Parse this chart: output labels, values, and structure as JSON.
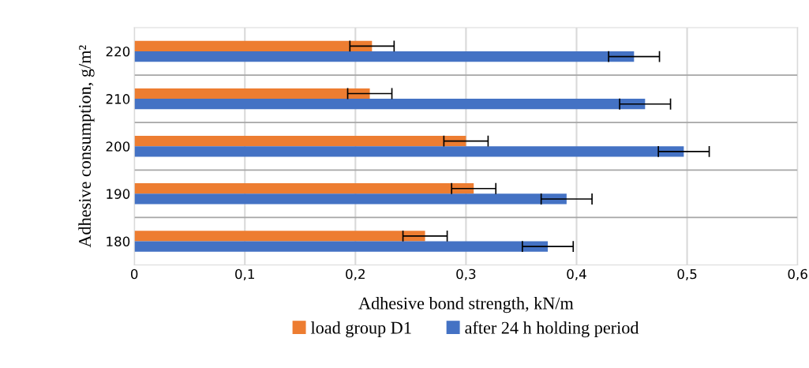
{
  "chart_data": {
    "type": "bar",
    "orientation": "horizontal",
    "xlabel": "Adhesive bond strength, kN/m",
    "ylabel": "Adhesive consumption, g/m²",
    "categories": [
      "220",
      "210",
      "200",
      "190",
      "180"
    ],
    "series": [
      {
        "name": "load group D1",
        "color": "#ed7d31",
        "values": [
          0.215,
          0.213,
          0.3,
          0.307,
          0.263
        ],
        "errors": [
          0.02,
          0.02,
          0.02,
          0.02,
          0.02
        ]
      },
      {
        "name": "after 24 h holding period",
        "color": "#4472c4",
        "values": [
          0.452,
          0.462,
          0.497,
          0.391,
          0.374
        ],
        "errors": [
          0.023,
          0.023,
          0.023,
          0.023,
          0.023
        ]
      }
    ],
    "xlim": [
      0,
      0.6
    ],
    "xticks": [
      {
        "value": 0,
        "label": "0"
      },
      {
        "value": 0.1,
        "label": "0,1"
      },
      {
        "value": 0.2,
        "label": "0,2"
      },
      {
        "value": 0.3,
        "label": "0,3"
      },
      {
        "value": 0.4,
        "label": "0,4"
      },
      {
        "value": 0.5,
        "label": "0,5"
      },
      {
        "value": 0.6,
        "label": "0,6"
      }
    ],
    "grid": "x",
    "legend": "bottom"
  }
}
